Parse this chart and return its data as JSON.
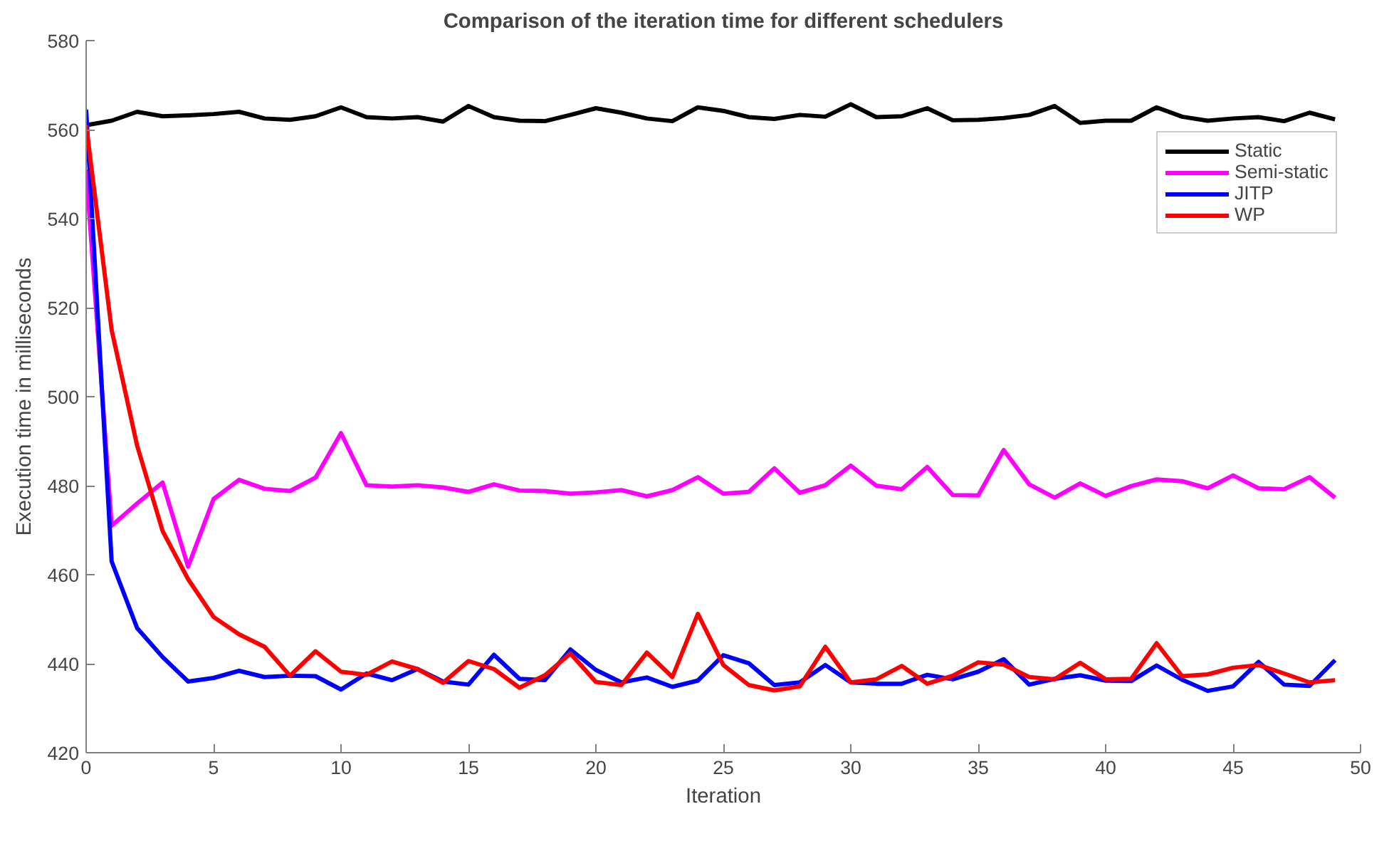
{
  "chart_data": {
    "type": "line",
    "title": "Comparison of the iteration time for different schedulers",
    "xlabel": "Iteration",
    "ylabel": "Execution time in milliseconds",
    "x": [
      0,
      1,
      2,
      3,
      4,
      5,
      6,
      7,
      8,
      9,
      10,
      11,
      12,
      13,
      14,
      15,
      16,
      17,
      18,
      19,
      20,
      21,
      22,
      23,
      24,
      25,
      26,
      27,
      28,
      29,
      30,
      31,
      32,
      33,
      34,
      35,
      36,
      37,
      38,
      39,
      40,
      41,
      42,
      43,
      44,
      45,
      46,
      47,
      48,
      49
    ],
    "xlim": [
      0,
      50
    ],
    "xticks": [
      0,
      5,
      10,
      15,
      20,
      25,
      30,
      35,
      40,
      45,
      50
    ],
    "ylim": [
      420,
      580
    ],
    "yticks": [
      420,
      440,
      460,
      480,
      500,
      520,
      540,
      560,
      580
    ],
    "grid": false,
    "legend": "top right",
    "line_style": "solid",
    "marker": "none",
    "series": [
      {
        "name": "Static",
        "color": "#000000",
        "values": [
          561,
          562,
          564,
          563,
          563.2,
          563.5,
          564,
          562.5,
          562.2,
          563,
          565,
          562.8,
          562.5,
          562.8,
          561.8,
          565.3,
          562.8,
          562,
          561.9,
          563.3,
          564.8,
          563.8,
          562.5,
          561.9,
          565,
          564.2,
          562.8,
          562.4,
          563.3,
          562.9,
          565.7,
          562.8,
          563,
          564.8,
          562.1,
          562.2,
          562.6,
          563.3,
          565.3,
          561.5,
          562,
          562,
          565,
          562.9,
          562,
          562.5,
          562.8,
          561.9,
          563.8,
          562.3
        ]
      },
      {
        "name": "Semi-static",
        "color": "#ff00ff",
        "values": [
          551,
          471,
          476,
          480.7,
          461.8,
          477,
          481.3,
          479.3,
          478.8,
          481.8,
          491.8,
          480.1,
          479.8,
          480.1,
          479.6,
          478.6,
          480.3,
          478.9,
          478.8,
          478.2,
          478.5,
          479,
          477.6,
          479,
          481.9,
          478.2,
          478.6,
          483.9,
          478.4,
          480.1,
          484.5,
          480,
          479.2,
          484.2,
          477.9,
          477.8,
          488,
          480.3,
          477.3,
          480.5,
          477.7,
          479.9,
          481.4,
          481,
          479.4,
          482.3,
          479.4,
          479.2,
          481.9,
          477.3
        ]
      },
      {
        "name": "JITP",
        "color": "#0000ff",
        "values": [
          564.5,
          463,
          448,
          441.5,
          436,
          436.8,
          438.4,
          437,
          437.3,
          437.2,
          434.2,
          437.8,
          436.3,
          438.8,
          436,
          435.3,
          442,
          436.6,
          436.3,
          443.2,
          438.6,
          435.8,
          436.9,
          434.8,
          436.2,
          441.9,
          440.1,
          435.2,
          435.8,
          439.7,
          435.8,
          435.5,
          435.5,
          437.5,
          436.5,
          438.2,
          441,
          435.3,
          436.6,
          437.4,
          436.2,
          436.1,
          439.6,
          436.4,
          433.9,
          434.9,
          440.4,
          435.3,
          435,
          440.8
        ]
      },
      {
        "name": "WP",
        "color": "#ff0000",
        "values": [
          561,
          515,
          489,
          469.8,
          459,
          450.5,
          446.6,
          443.8,
          437.3,
          442.8,
          438.2,
          437.5,
          440.5,
          438.8,
          435.7,
          440.6,
          438.8,
          434.6,
          437.4,
          442.3,
          435.9,
          435.2,
          442.5,
          437,
          451.2,
          439.7,
          435.2,
          434,
          434.9,
          443.8,
          435.8,
          436.5,
          439.5,
          435.5,
          437.3,
          440.3,
          439.8,
          437,
          436.5,
          440.2,
          436.5,
          436.6,
          444.6,
          437.2,
          437.6,
          439.1,
          439.7,
          437.8,
          435.8,
          436.3
        ]
      }
    ]
  }
}
